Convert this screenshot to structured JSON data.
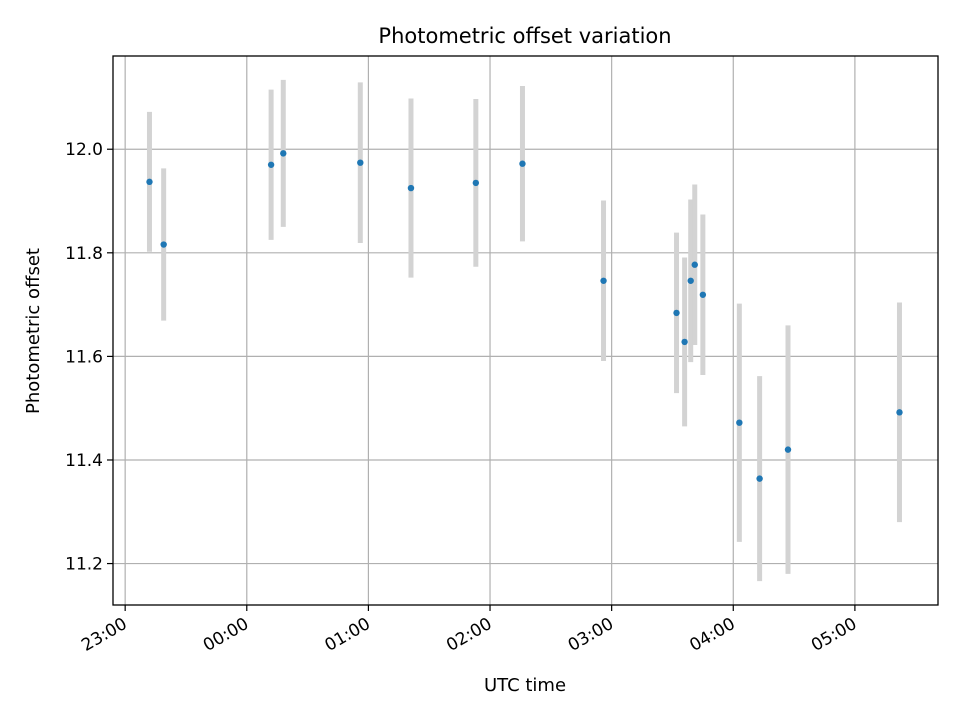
{
  "chart_data": {
    "type": "scatter",
    "title": "Photometric offset variation",
    "xlabel": "UTC time",
    "ylabel": "Photometric offset",
    "grid": true,
    "x_tick_labels": [
      "23:00",
      "00:00",
      "01:00",
      "02:00",
      "03:00",
      "04:00",
      "05:00"
    ],
    "y_tick_labels": [
      "11.2",
      "11.4",
      "11.6",
      "11.8",
      "12.0"
    ],
    "y_ticks": [
      11.2,
      11.4,
      11.6,
      11.8,
      12.0
    ],
    "xlim": [
      "22:54",
      "05:41"
    ],
    "ylim": [
      11.12,
      12.18
    ],
    "colors": {
      "point": "#1f77b4",
      "errorbar": "#d3d3d3",
      "grid": "#b0b0b0"
    },
    "points": [
      {
        "x": "23:12",
        "y": 11.937,
        "err": 0.135
      },
      {
        "x": "23:19",
        "y": 11.816,
        "err": 0.147
      },
      {
        "x": "00:12",
        "y": 11.97,
        "err": 0.145
      },
      {
        "x": "00:18",
        "y": 11.992,
        "err": 0.142
      },
      {
        "x": "00:56",
        "y": 11.974,
        "err": 0.155
      },
      {
        "x": "01:21",
        "y": 11.925,
        "err": 0.173
      },
      {
        "x": "01:53",
        "y": 11.935,
        "err": 0.162
      },
      {
        "x": "02:16",
        "y": 11.972,
        "err": 0.15
      },
      {
        "x": "02:56",
        "y": 11.746,
        "err": 0.155
      },
      {
        "x": "03:32",
        "y": 11.684,
        "err": 0.155
      },
      {
        "x": "03:36",
        "y": 11.628,
        "err": 0.163
      },
      {
        "x": "03:39",
        "y": 11.746,
        "err": 0.157
      },
      {
        "x": "03:41",
        "y": 11.777,
        "err": 0.155
      },
      {
        "x": "03:45",
        "y": 11.719,
        "err": 0.155
      },
      {
        "x": "04:03",
        "y": 11.472,
        "err": 0.23
      },
      {
        "x": "04:13",
        "y": 11.364,
        "err": 0.198
      },
      {
        "x": "04:27",
        "y": 11.42,
        "err": 0.24
      },
      {
        "x": "05:22",
        "y": 11.492,
        "err": 0.212
      }
    ]
  }
}
